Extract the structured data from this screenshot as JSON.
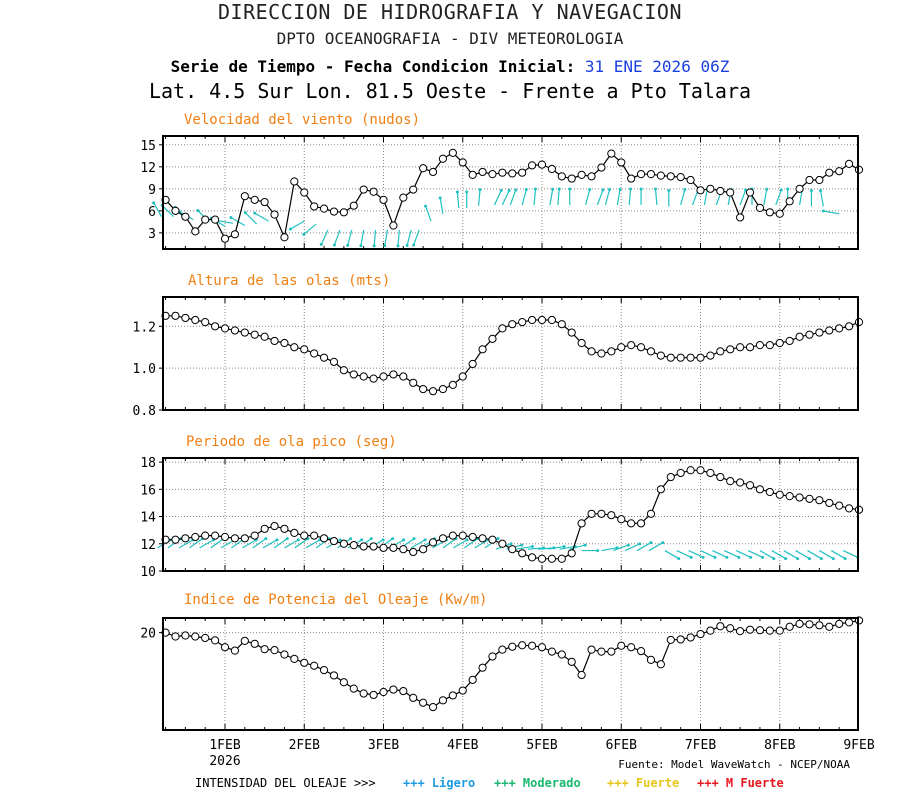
{
  "header": {
    "title": "DIRECCION DE HIDROGRAFIA Y NAVEGACION",
    "subtitle": "DPTO OCEANOGRAFIA - DIV METEOROLOGIA",
    "series_label": "Serie de Tiempo - Fecha Condicion Inicial:",
    "init_date": "31 ENE 2026 06Z",
    "location": "Lat. 4.5 Sur  Lon. 81.5 Oeste - Frente a Pto Talara"
  },
  "x_axis": {
    "ticks": [
      {
        "day": 1,
        "label": "1FEB"
      },
      {
        "day": 2,
        "label": "2FEB"
      },
      {
        "day": 3,
        "label": "3FEB"
      },
      {
        "day": 4,
        "label": "4FEB"
      },
      {
        "day": 5,
        "label": "5FEB"
      },
      {
        "day": 6,
        "label": "6FEB"
      },
      {
        "day": 7,
        "label": "7FEB"
      },
      {
        "day": 8,
        "label": "8FEB"
      },
      {
        "day": 9,
        "label": "9FEB"
      }
    ],
    "year_label": "2026",
    "start_day": 0.25,
    "end_day": 9.0,
    "step_days": 0.125
  },
  "source": "Fuente: Model WaveWatch - NCEP/NOAA",
  "legend": {
    "label": "INTENSIDAD DEL OLEAJE >>>",
    "items": [
      {
        "text": "+++ Ligero",
        "color": "#1e9be0"
      },
      {
        "text": "+++ Moderado",
        "color": "#19b86e"
      },
      {
        "text": "+++ Fuerte",
        "color": "#e6c619"
      },
      {
        "text": "+++ M Fuerte",
        "color": "#e8181e"
      }
    ]
  },
  "colors": {
    "title": "#f07f14",
    "arrow": "#20c0c0",
    "line": "#000000",
    "grid": "#888888"
  },
  "chart_data": [
    {
      "id": "wind",
      "type": "line",
      "title": "Velocidad del viento (nudos)",
      "ylim": [
        0.8,
        16.2
      ],
      "yticks": [
        3,
        6,
        9,
        12,
        15
      ],
      "marker": "circle",
      "values": [
        7.5,
        6.0,
        5.2,
        3.2,
        4.8,
        4.8,
        2.2,
        2.8,
        8.0,
        7.5,
        7.2,
        5.5,
        2.4,
        10.0,
        8.5,
        6.6,
        6.3,
        5.9,
        5.8,
        6.7,
        8.9,
        8.6,
        7.5,
        4.0,
        7.8,
        8.9,
        11.8,
        11.3,
        13.1,
        13.9,
        12.6,
        10.9,
        11.3,
        11.0,
        11.2,
        11.1,
        11.2,
        12.2,
        12.3,
        11.7,
        10.7,
        10.4,
        10.9,
        10.7,
        11.9,
        13.8,
        12.6,
        10.4,
        11.0,
        11.0,
        10.8,
        10.7,
        10.6,
        10.2,
        8.8,
        9.0,
        8.7,
        8.5,
        5.1,
        8.5,
        6.4,
        5.8,
        5.6,
        7.3,
        9.0,
        10.2,
        10.2,
        11.2,
        11.4,
        12.4,
        11.6
      ],
      "arrows": [
        {
          "x": 0.2,
          "y": 5.2,
          "a": -30
        },
        {
          "x": 0.35,
          "y": 5.2,
          "a": -45
        },
        {
          "x": 0.5,
          "y": 4.8,
          "a": -40
        },
        {
          "x": 0.6,
          "y": 4.8,
          "a": -60
        },
        {
          "x": 0.8,
          "y": 4.5,
          "a": -45
        },
        {
          "x": 1.0,
          "y": 3.9,
          "a": -60
        },
        {
          "x": 1.1,
          "y": 4.3,
          "a": -80
        },
        {
          "x": 1.25,
          "y": 4.0,
          "a": -60
        },
        {
          "x": 1.4,
          "y": 4.2,
          "a": -45
        },
        {
          "x": 1.55,
          "y": 4.6,
          "a": -60
        },
        {
          "x": 2.0,
          "y": 4.6,
          "a": -120
        },
        {
          "x": 2.15,
          "y": 4.2,
          "a": -130
        },
        {
          "x": 2.3,
          "y": 3.4,
          "a": -155
        },
        {
          "x": 2.45,
          "y": 3.4,
          "a": -160
        },
        {
          "x": 2.6,
          "y": 3.4,
          "a": -165
        },
        {
          "x": 2.75,
          "y": 3.4,
          "a": -170
        },
        {
          "x": 2.9,
          "y": 3.4,
          "a": -175
        },
        {
          "x": 3.05,
          "y": 3.4,
          "a": -170
        },
        {
          "x": 3.2,
          "y": 3.4,
          "a": -175
        },
        {
          "x": 3.35,
          "y": 3.4,
          "a": -165
        },
        {
          "x": 3.45,
          "y": 3.4,
          "a": -160
        },
        {
          "x": 3.6,
          "y": 4.6,
          "a": -20
        },
        {
          "x": 3.75,
          "y": 5.6,
          "a": -10
        },
        {
          "x": 3.95,
          "y": 6.4,
          "a": -5
        },
        {
          "x": 4.05,
          "y": 6.4,
          "a": 0
        },
        {
          "x": 4.2,
          "y": 6.7,
          "a": 5
        },
        {
          "x": 4.4,
          "y": 6.8,
          "a": 25
        },
        {
          "x": 4.5,
          "y": 6.8,
          "a": 25
        },
        {
          "x": 4.6,
          "y": 6.8,
          "a": 20
        },
        {
          "x": 4.75,
          "y": 6.8,
          "a": 15
        },
        {
          "x": 4.9,
          "y": 6.8,
          "a": 5
        },
        {
          "x": 5.1,
          "y": 6.8,
          "a": 10
        },
        {
          "x": 5.2,
          "y": 6.8,
          "a": 5
        },
        {
          "x": 5.35,
          "y": 6.8,
          "a": 0
        },
        {
          "x": 5.55,
          "y": 6.8,
          "a": 15
        },
        {
          "x": 5.7,
          "y": 6.8,
          "a": 20
        },
        {
          "x": 5.8,
          "y": 6.8,
          "a": 15
        },
        {
          "x": 5.95,
          "y": 6.8,
          "a": 10
        },
        {
          "x": 6.1,
          "y": 6.8,
          "a": 5
        },
        {
          "x": 6.25,
          "y": 6.8,
          "a": 0
        },
        {
          "x": 6.45,
          "y": 6.8,
          "a": -5
        },
        {
          "x": 6.6,
          "y": 6.6,
          "a": 0
        },
        {
          "x": 6.75,
          "y": 6.8,
          "a": 15
        },
        {
          "x": 6.9,
          "y": 6.8,
          "a": 20
        },
        {
          "x": 7.05,
          "y": 6.8,
          "a": 10
        },
        {
          "x": 7.2,
          "y": 6.8,
          "a": 20
        },
        {
          "x": 7.35,
          "y": 6.8,
          "a": 10
        },
        {
          "x": 7.5,
          "y": 6.8,
          "a": 20
        },
        {
          "x": 7.65,
          "y": 6.8,
          "a": 0
        },
        {
          "x": 7.8,
          "y": 6.8,
          "a": 10
        },
        {
          "x": 7.95,
          "y": 6.8,
          "a": 20
        },
        {
          "x": 8.1,
          "y": 6.8,
          "a": 0
        },
        {
          "x": 8.25,
          "y": 6.8,
          "a": 10
        },
        {
          "x": 8.4,
          "y": 6.6,
          "a": 0
        },
        {
          "x": 8.55,
          "y": 6.6,
          "a": -10
        },
        {
          "x": 8.75,
          "y": 5.6,
          "a": -80
        }
      ]
    },
    {
      "id": "height",
      "type": "line",
      "title": "Altura de las olas (mts)",
      "ylim": [
        0.8,
        1.34
      ],
      "yticks": [
        0.8,
        1.0,
        1.2
      ],
      "ytick_labels": [
        "0.8",
        "1.0",
        "1.2"
      ],
      "marker": "circle",
      "values": [
        1.25,
        1.25,
        1.24,
        1.23,
        1.22,
        1.2,
        1.19,
        1.18,
        1.17,
        1.16,
        1.15,
        1.13,
        1.12,
        1.1,
        1.09,
        1.07,
        1.05,
        1.03,
        0.99,
        0.97,
        0.96,
        0.95,
        0.96,
        0.97,
        0.96,
        0.93,
        0.9,
        0.89,
        0.9,
        0.92,
        0.96,
        1.02,
        1.09,
        1.14,
        1.19,
        1.21,
        1.22,
        1.23,
        1.23,
        1.23,
        1.21,
        1.17,
        1.12,
        1.08,
        1.07,
        1.08,
        1.1,
        1.11,
        1.1,
        1.08,
        1.06,
        1.05,
        1.05,
        1.05,
        1.05,
        1.06,
        1.08,
        1.09,
        1.1,
        1.1,
        1.11,
        1.11,
        1.12,
        1.13,
        1.15,
        1.16,
        1.17,
        1.18,
        1.19,
        1.2,
        1.22
      ]
    },
    {
      "id": "period",
      "type": "line",
      "title": "Periodo de ola pico (seg)",
      "ylim": [
        10,
        18.3
      ],
      "yticks": [
        10,
        12,
        14,
        16,
        18
      ],
      "marker": "circle",
      "values": [
        12.3,
        12.3,
        12.4,
        12.5,
        12.6,
        12.6,
        12.5,
        12.4,
        12.4,
        12.6,
        13.1,
        13.3,
        13.1,
        12.8,
        12.6,
        12.6,
        12.4,
        12.2,
        12.0,
        11.9,
        11.8,
        11.8,
        11.7,
        11.7,
        11.6,
        11.4,
        11.6,
        12.1,
        12.4,
        12.6,
        12.6,
        12.5,
        12.4,
        12.3,
        12.0,
        11.6,
        11.3,
        11.0,
        10.9,
        10.9,
        10.9,
        11.3,
        13.5,
        14.2,
        14.2,
        14.1,
        13.8,
        13.5,
        13.5,
        14.2,
        16.0,
        16.9,
        17.2,
        17.4,
        17.4,
        17.2,
        16.9,
        16.6,
        16.5,
        16.3,
        16.0,
        15.8,
        15.6,
        15.5,
        15.4,
        15.3,
        15.2,
        15.0,
        14.8,
        14.6,
        14.5
      ],
      "arrows": [
        {
          "x": 0.15,
          "y": 11.7,
          "a": 60
        },
        {
          "x": 0.28,
          "y": 11.7,
          "a": 55
        },
        {
          "x": 0.42,
          "y": 11.7,
          "a": 60
        },
        {
          "x": 0.55,
          "y": 11.7,
          "a": 55
        },
        {
          "x": 0.68,
          "y": 11.7,
          "a": 60
        },
        {
          "x": 0.82,
          "y": 11.7,
          "a": 55
        },
        {
          "x": 0.95,
          "y": 11.7,
          "a": 60
        },
        {
          "x": 1.08,
          "y": 11.7,
          "a": 55
        },
        {
          "x": 1.22,
          "y": 11.7,
          "a": 60
        },
        {
          "x": 1.35,
          "y": 11.7,
          "a": 55
        },
        {
          "x": 1.48,
          "y": 11.7,
          "a": 60
        },
        {
          "x": 1.62,
          "y": 11.7,
          "a": 55
        },
        {
          "x": 1.75,
          "y": 11.7,
          "a": 60
        },
        {
          "x": 1.88,
          "y": 11.7,
          "a": 55
        },
        {
          "x": 2.02,
          "y": 11.7,
          "a": 60
        },
        {
          "x": 2.15,
          "y": 11.7,
          "a": 55
        },
        {
          "x": 2.28,
          "y": 11.7,
          "a": 60
        },
        {
          "x": 2.42,
          "y": 11.7,
          "a": 55
        },
        {
          "x": 2.55,
          "y": 11.7,
          "a": 60
        },
        {
          "x": 2.68,
          "y": 11.7,
          "a": 55
        },
        {
          "x": 2.82,
          "y": 11.7,
          "a": 60
        },
        {
          "x": 2.95,
          "y": 11.7,
          "a": 55
        },
        {
          "x": 3.08,
          "y": 11.7,
          "a": 60
        },
        {
          "x": 3.22,
          "y": 11.7,
          "a": 55
        },
        {
          "x": 3.35,
          "y": 11.7,
          "a": 60
        },
        {
          "x": 3.48,
          "y": 11.7,
          "a": 55
        },
        {
          "x": 3.62,
          "y": 11.7,
          "a": 60
        },
        {
          "x": 3.75,
          "y": 11.7,
          "a": 55
        },
        {
          "x": 3.88,
          "y": 11.7,
          "a": 60
        },
        {
          "x": 4.02,
          "y": 11.7,
          "a": 55
        },
        {
          "x": 4.15,
          "y": 11.7,
          "a": 60
        },
        {
          "x": 4.28,
          "y": 11.7,
          "a": 55
        },
        {
          "x": 4.42,
          "y": 11.6,
          "a": 70
        },
        {
          "x": 4.55,
          "y": 11.6,
          "a": 75
        },
        {
          "x": 4.68,
          "y": 11.6,
          "a": 80
        },
        {
          "x": 4.82,
          "y": 11.6,
          "a": 85
        },
        {
          "x": 4.95,
          "y": 11.6,
          "a": 85
        },
        {
          "x": 5.08,
          "y": 11.6,
          "a": 80
        },
        {
          "x": 5.22,
          "y": 11.6,
          "a": 80
        },
        {
          "x": 5.35,
          "y": 11.6,
          "a": 75
        },
        {
          "x": 5.5,
          "y": 11.5,
          "a": 90
        },
        {
          "x": 5.75,
          "y": 11.5,
          "a": 80
        },
        {
          "x": 5.9,
          "y": 11.5,
          "a": 70
        },
        {
          "x": 6.05,
          "y": 11.5,
          "a": 65
        },
        {
          "x": 6.2,
          "y": 11.5,
          "a": 60
        },
        {
          "x": 6.35,
          "y": 11.5,
          "a": 60
        },
        {
          "x": 6.55,
          "y": 11.5,
          "a": 120
        },
        {
          "x": 6.7,
          "y": 11.5,
          "a": 115
        },
        {
          "x": 6.85,
          "y": 11.5,
          "a": 115
        },
        {
          "x": 7.0,
          "y": 11.5,
          "a": 115
        },
        {
          "x": 7.15,
          "y": 11.5,
          "a": 115
        },
        {
          "x": 7.3,
          "y": 11.5,
          "a": 115
        },
        {
          "x": 7.45,
          "y": 11.5,
          "a": 115
        },
        {
          "x": 7.6,
          "y": 11.5,
          "a": 115
        },
        {
          "x": 7.75,
          "y": 11.5,
          "a": 120
        },
        {
          "x": 7.9,
          "y": 11.5,
          "a": 120
        },
        {
          "x": 8.05,
          "y": 11.5,
          "a": 120
        },
        {
          "x": 8.2,
          "y": 11.5,
          "a": 120
        },
        {
          "x": 8.35,
          "y": 11.5,
          "a": 120
        },
        {
          "x": 8.5,
          "y": 11.5,
          "a": 120
        },
        {
          "x": 8.65,
          "y": 11.5,
          "a": 120
        },
        {
          "x": 8.8,
          "y": 11.5,
          "a": 115
        }
      ]
    },
    {
      "id": "power",
      "type": "line",
      "title": "Indice de Potencia del Oleaje (Kw/m)",
      "ylim": [
        0,
        23
      ],
      "yticks": [
        20
      ],
      "marker": "circle",
      "values": [
        20.0,
        19.2,
        19.4,
        19.2,
        18.9,
        18.4,
        17.0,
        16.3,
        18.3,
        17.7,
        16.6,
        16.4,
        15.5,
        14.6,
        13.8,
        13.2,
        12.3,
        11.2,
        9.8,
        8.5,
        7.5,
        7.2,
        7.8,
        8.3,
        8.0,
        6.6,
        5.6,
        4.7,
        6.1,
        7.1,
        8.1,
        10.3,
        12.8,
        15.1,
        16.5,
        17.1,
        17.4,
        17.3,
        17.0,
        16.1,
        15.5,
        14.0,
        11.3,
        16.5,
        16.1,
        16.1,
        17.3,
        17.0,
        16.2,
        14.4,
        13.5,
        18.5,
        18.6,
        19.0,
        19.7,
        20.4,
        21.3,
        20.9,
        20.3,
        20.6,
        20.5,
        20.4,
        20.4,
        21.2,
        21.8,
        21.7,
        21.5,
        21.2,
        21.8,
        22.1,
        22.5
      ]
    }
  ]
}
